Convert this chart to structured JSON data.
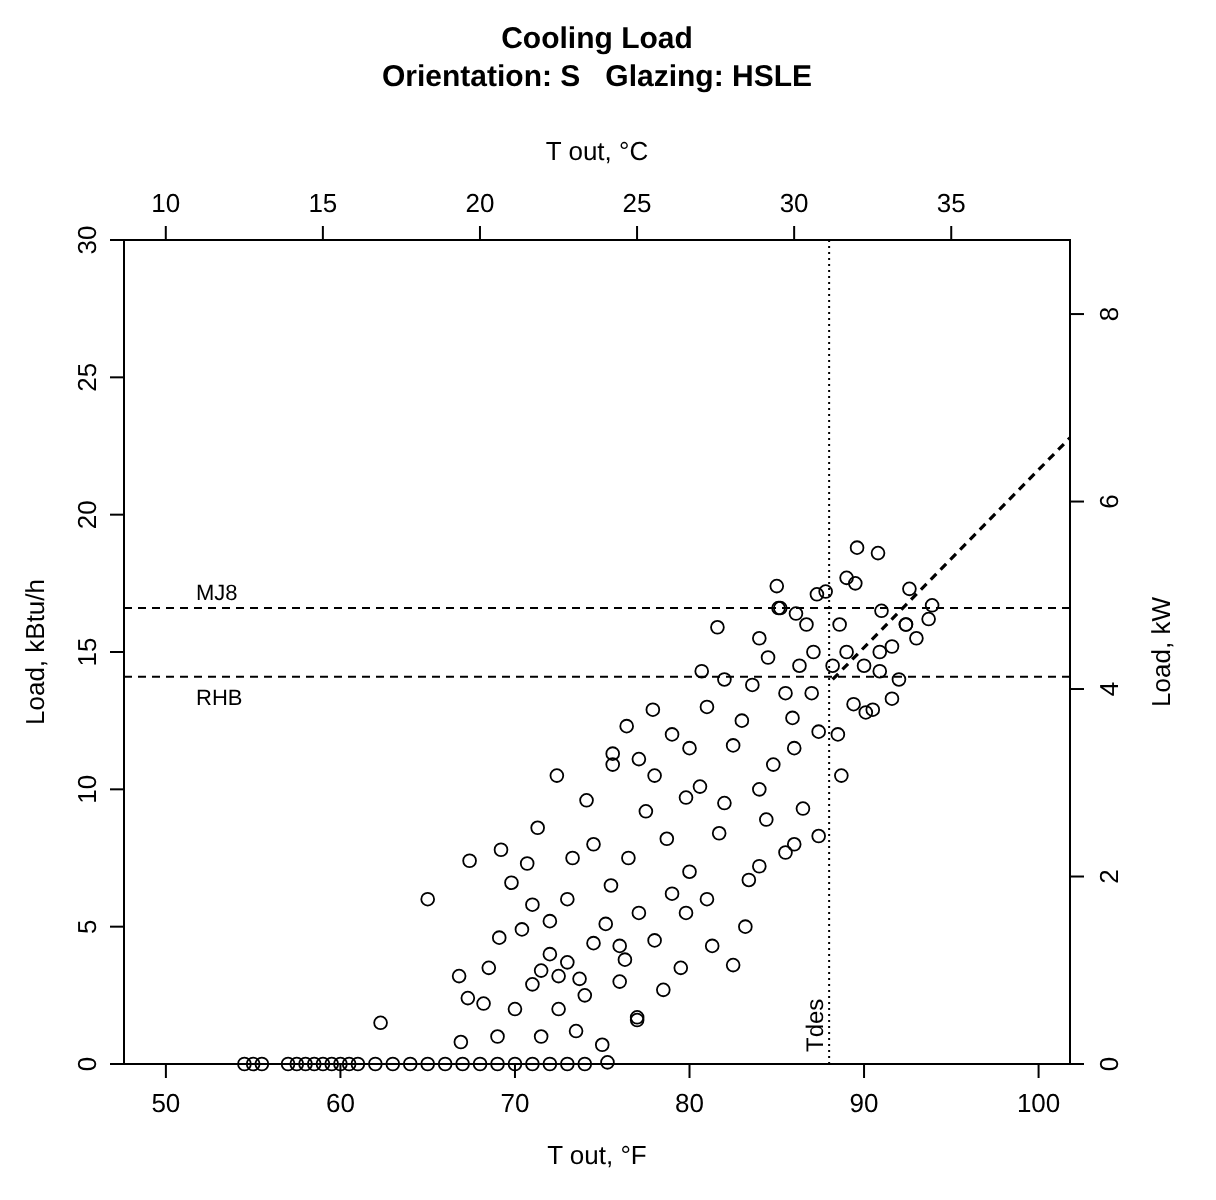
{
  "chart_data": {
    "type": "scatter",
    "title": "Cooling Load",
    "subtitle": "Orientation: S   Glazing: HSLE",
    "xlabel": "T out, °F",
    "x2label": "T out, °C",
    "ylabel": "Load, kBtu/h",
    "y2label": "Load, kW",
    "xlim": [
      47.6,
      101.8
    ],
    "xticks": [
      50,
      60,
      70,
      80,
      90,
      100
    ],
    "x2lim": [
      8.67,
      38.78
    ],
    "x2ticks": [
      10,
      15,
      20,
      25,
      30,
      35
    ],
    "ylim": [
      0,
      30
    ],
    "yticks": [
      0,
      5,
      10,
      15,
      20,
      25,
      30
    ],
    "y2lim": [
      0,
      8.79
    ],
    "y2ticks": [
      0,
      2,
      4,
      6,
      8
    ],
    "grid": false,
    "ref_lines": [
      {
        "axis": "y",
        "value": 16.6,
        "label": "MJ8",
        "color": "#000000",
        "line_style": "dashed"
      },
      {
        "axis": "y",
        "value": 14.1,
        "label": "RHB",
        "color": "#000000",
        "line_style": "dashed"
      },
      {
        "axis": "x",
        "value": 88,
        "label": "Tdes",
        "color": "#000000",
        "line_style": "dotted"
      }
    ],
    "series": [
      {
        "color": "#000000",
        "marker": "circle",
        "x": [
          54.5,
          55,
          55.5,
          57,
          57.5,
          58,
          58.5,
          59,
          59.5,
          60,
          60.5,
          61,
          62,
          63,
          64,
          65,
          66,
          67,
          68,
          69,
          70,
          71,
          72,
          73,
          74,
          65.0,
          62.3,
          67.4,
          69.2,
          69.8,
          70.7,
          71.3,
          72.4,
          66.8,
          67.3,
          68.2,
          66.9,
          69.1,
          70.4,
          77.0,
          75.0,
          75.3,
          71,
          71.5,
          72,
          72.5,
          73,
          73.7,
          74.5,
          75.2,
          76.3,
          73.3,
          74.1,
          75.6,
          81.6,
          80.7,
          88.7,
          87.4,
          86.5,
          85.5,
          82.5,
          83.2,
          83.4,
          78.5,
          77.0,
          91.6,
          92.4,
          90.1,
          85.1,
          84.0,
          76.0,
          78.7,
          80.6,
          82.5,
          83.6,
          86.3,
          87.1,
          75.6,
          77.9,
          76.4,
          77.1,
          77.5,
          79.8,
          81.7,
          84.4,
          84.0,
          79.8,
          81.3,
          79.0,
          77.1,
          88.2,
          89.4,
          90.9,
          88.6,
          86.7,
          85.9,
          84.8,
          87.4,
          89.6,
          90.8,
          85.0,
          89.0,
          89.5,
          87.3,
          87.8,
          92.6,
          93.7,
          93.9,
          85.2,
          86.1,
          92.4,
          91.6,
          90.9,
          90.5,
          74.5,
          73.0,
          72.0,
          75.5,
          76.5,
          78.0,
          79.0,
          80.0,
          81.0,
          82.0,
          83.0,
          84.5,
          85.5,
          86.0,
          87.0,
          88.5,
          89.0,
          90.0,
          91.0,
          92.0,
          93.0,
          71.5,
          72.5,
          73.5,
          74.0,
          70.0,
          69.0,
          68.5,
          71.0,
          76.0,
          78.0,
          80.0,
          82.0,
          84.0,
          86.0,
          81.0,
          79.5
        ],
        "values": [
          0,
          0,
          0,
          0,
          0,
          0,
          0,
          0,
          0,
          0,
          0,
          0,
          0,
          0,
          0,
          0,
          0,
          0,
          0,
          0,
          0,
          0,
          0,
          0,
          0,
          6.0,
          1.5,
          7.4,
          7.8,
          6.6,
          7.3,
          8.6,
          10.5,
          3.2,
          2.4,
          2.2,
          0.8,
          4.6,
          4.9,
          1.7,
          0.7,
          0.06,
          2.9,
          3.4,
          4.0,
          3.2,
          3.7,
          3.1,
          4.4,
          5.1,
          3.8,
          7.5,
          9.6,
          10.9,
          15.9,
          14.3,
          10.5,
          8.3,
          9.3,
          7.7,
          3.6,
          5.0,
          6.7,
          2.7,
          1.6,
          13.3,
          16.0,
          12.8,
          16.6,
          15.5,
          4.3,
          8.2,
          10.1,
          11.6,
          13.8,
          14.5,
          15.0,
          11.3,
          12.9,
          12.3,
          11.1,
          9.2,
          9.7,
          8.4,
          8.9,
          7.2,
          5.5,
          4.3,
          6.2,
          5.5,
          14.5,
          13.1,
          15.0,
          16.0,
          16.0,
          12.6,
          10.9,
          12.1,
          18.8,
          18.6,
          17.4,
          17.7,
          17.5,
          17.1,
          17.2,
          17.3,
          16.2,
          16.7,
          16.6,
          16.4,
          16.0,
          15.2,
          14.3,
          12.9,
          8.0,
          6.0,
          5.2,
          6.5,
          7.5,
          10.5,
          12.0,
          11.5,
          13.0,
          14.0,
          12.5,
          14.8,
          13.5,
          11.5,
          13.5,
          12.0,
          15.0,
          14.5,
          16.5,
          14.0,
          15.5,
          1.0,
          2.0,
          1.2,
          2.5,
          2.0,
          1.0,
          3.5,
          5.8,
          3.0,
          4.5,
          7.0,
          9.5,
          10.0,
          8.0,
          6.0,
          3.5
        ]
      },
      {
        "type": "line",
        "color": "#000000",
        "line_style": "dashed",
        "marker": "none",
        "x": [
          88.2,
          101.8
        ],
        "values": [
          14.0,
          22.8
        ]
      }
    ]
  }
}
